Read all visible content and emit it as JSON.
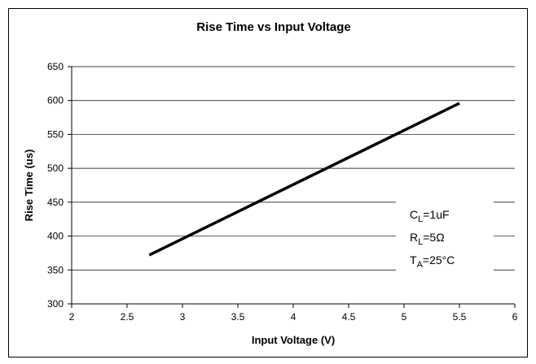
{
  "chart_data": {
    "type": "line",
    "title": "Rise Time vs Input Voltage",
    "xlabel": "Input Voltage (V)",
    "ylabel": "Rise Time (us)",
    "xlim": [
      2,
      6
    ],
    "ylim": [
      300,
      650
    ],
    "xticks": [
      "2",
      "2.5",
      "3",
      "3.5",
      "4",
      "4.5",
      "5",
      "5.5",
      "6"
    ],
    "yticks": [
      "300",
      "350",
      "400",
      "450",
      "500",
      "550",
      "600",
      "650"
    ],
    "grid": "horizontal",
    "series": [
      {
        "x": [
          2.7,
          5.5
        ],
        "y": [
          372,
          596
        ]
      }
    ],
    "annotations": [
      {
        "base": "C",
        "sub": "L",
        "rest": "=1uF"
      },
      {
        "base": "R",
        "sub": "L",
        "rest": "=5Ω"
      },
      {
        "base": "T",
        "sub": "A",
        "rest": "=25°C"
      }
    ]
  }
}
